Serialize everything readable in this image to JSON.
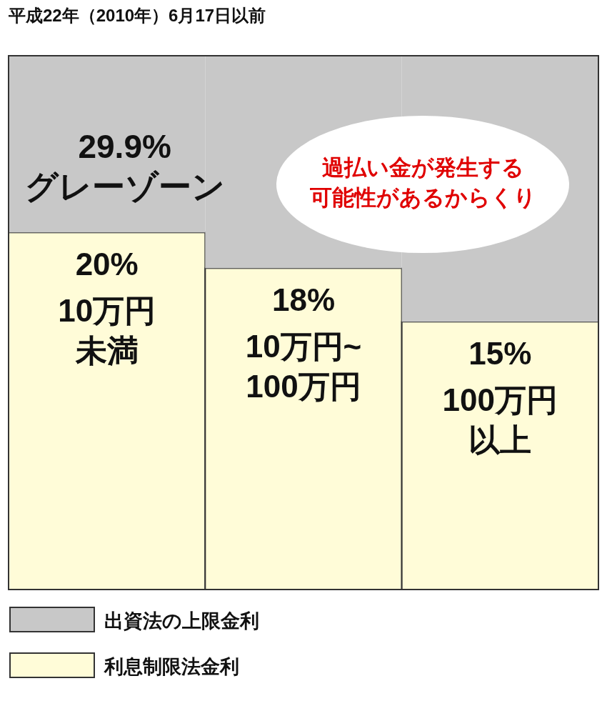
{
  "chart_data": {
    "type": "bar",
    "title": "平成22年（2010年）6月17日以前",
    "categories": [
      "10万円未満",
      "10万円~100万円",
      "100万円以上"
    ],
    "stacked": true,
    "series": [
      {
        "name": "利息制限法金利",
        "color": "#fffcd8",
        "values": [
          20,
          18,
          15
        ],
        "value_labels": [
          "20%",
          "18%",
          "15%"
        ]
      },
      {
        "name": "出資法の上限金利",
        "color": "#c8c8c8",
        "values": [
          9.9,
          11.9,
          14.9
        ]
      }
    ],
    "totals": [
      "29.9%",
      null,
      null
    ],
    "ylim": [
      0,
      29.9
    ],
    "tick_labels": false,
    "annotations": [
      "グレーゾーン",
      "過払い金が発生する可能性があるからくり"
    ],
    "legend": "bottom"
  }
}
